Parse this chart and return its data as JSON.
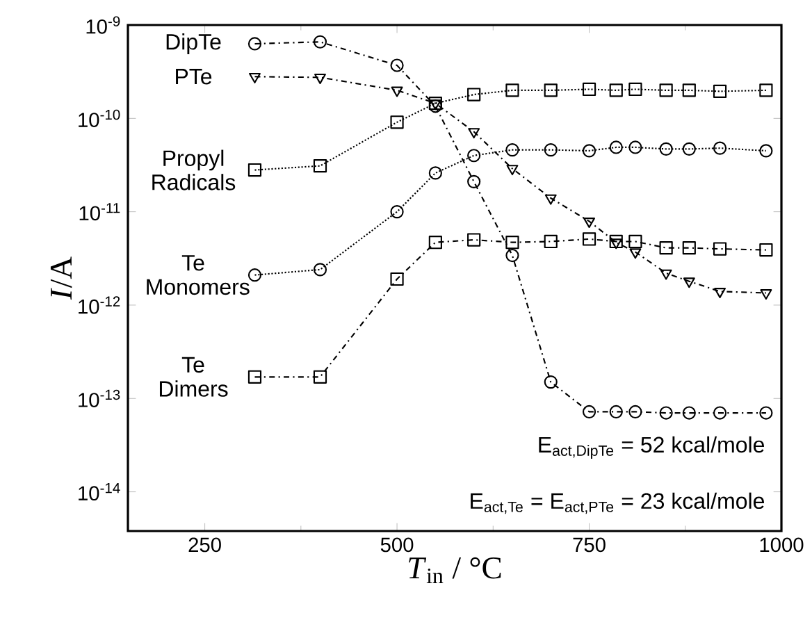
{
  "chart_data": {
    "type": "line",
    "xlabel": "*T*$_{in}$ / °C",
    "ylabel": "*I*/A",
    "log": "y",
    "x": [
      315,
      400,
      500,
      550,
      600,
      650,
      700,
      750,
      785,
      810,
      850,
      880,
      920,
      980
    ],
    "series": [
      {
        "name": "DipTe",
        "color": "#000000",
        "marker": "circle",
        "line_style": "dashed",
        "values": [
          6.3e-10,
          6.6e-10,
          3.7e-10,
          1.35e-10,
          2.1e-11,
          3.4e-12,
          1.5e-13,
          7.2e-14,
          7.2e-14,
          7.2e-14,
          7e-14,
          7e-14,
          7e-14,
          7e-14
        ]
      },
      {
        "name": "PTe",
        "color": "#000000",
        "marker": "triangle",
        "line_style": "dashed",
        "values": [
          2.8e-10,
          2.75e-10,
          2e-10,
          1.45e-10,
          7.2e-11,
          2.9e-11,
          1.4e-11,
          7.9e-12,
          4.7e-12,
          3.7e-12,
          2.2e-12,
          1.8e-12,
          1.4e-12,
          1.35e-12
        ]
      },
      {
        "name": "Propyl Radicals",
        "color": "#000000",
        "marker": "square",
        "line_style": "dotted",
        "values": [
          2.8e-11,
          3.1e-11,
          9.1e-11,
          1.45e-10,
          1.8e-10,
          2e-10,
          2e-10,
          2.05e-10,
          2e-10,
          2.05e-10,
          2e-10,
          2e-10,
          1.95e-10,
          2e-10
        ]
      },
      {
        "name": "Te Monomers",
        "color": "#000000",
        "marker": "circle",
        "line_style": "dotted",
        "values": [
          2.1e-12,
          2.4e-12,
          1e-11,
          2.6e-11,
          4e-11,
          4.6e-11,
          4.6e-11,
          4.5e-11,
          4.9e-11,
          4.9e-11,
          4.7e-11,
          4.7e-11,
          4.8e-11,
          4.5e-11
        ]
      },
      {
        "name": "Te Dimers",
        "color": "#000000",
        "marker": "square",
        "line_style": "dashed",
        "values": [
          1.7e-13,
          1.7e-13,
          1.9e-12,
          4.7e-12,
          5e-12,
          4.7e-12,
          4.8e-12,
          5.1e-12,
          4.8e-12,
          4.8e-12,
          4.1e-12,
          4.1e-12,
          4e-12,
          3.9e-12
        ]
      }
    ],
    "xlim": [
      150,
      1000
    ],
    "xticks": [
      250,
      500,
      750,
      1000
    ],
    "ylim": [
      3.8e-15,
      1e-09
    ],
    "yticks": [
      {
        "value": 1e-09,
        "label": "10$^{-9}$"
      },
      {
        "value": 1e-10,
        "label": "10$^{-10}$"
      },
      {
        "value": 1e-11,
        "label": "10$^{-11}$"
      },
      {
        "value": 1e-12,
        "label": "10$^{-12}$"
      },
      {
        "value": 1e-13,
        "label": "10$^{-13}$"
      },
      {
        "value": 1e-14,
        "label": "10$^{-14}$"
      }
    ],
    "annotations": [
      "E$_{act,DipTe}$ = 52 kcal/mole",
      "E$_{act,Te}$ = E$_{act,PTe}$ = 23 kcal/mole"
    ]
  }
}
